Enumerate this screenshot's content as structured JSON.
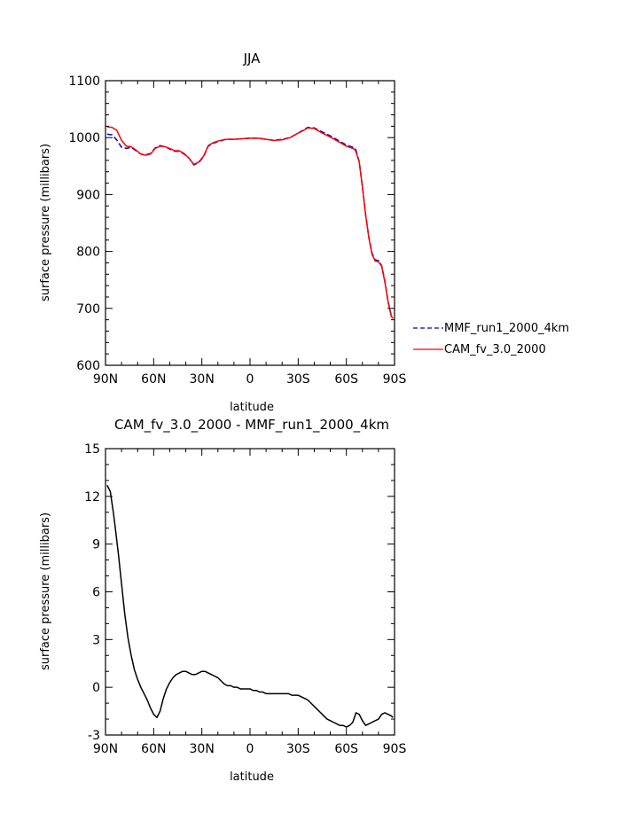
{
  "chart_data": [
    {
      "type": "line",
      "title": "JJA",
      "xlabel": "latitude",
      "ylabel": "surface pressure (millibars)",
      "xlim": [
        90,
        -90
      ],
      "ylim": [
        600,
        1100
      ],
      "x_ticks": [
        90,
        60,
        30,
        0,
        -30,
        -60,
        -90
      ],
      "x_tick_labels": [
        "90N",
        "60N",
        "30N",
        "0",
        "30S",
        "60S",
        "90S"
      ],
      "y_ticks": [
        600,
        700,
        800,
        900,
        1000,
        1100
      ],
      "y_tick_labels": [
        "600",
        "700",
        "800",
        "900",
        "1000",
        "1100"
      ],
      "grid": false,
      "legend_position": "right, outside plot",
      "series": [
        {
          "name": "MMF_run1_2000_4km",
          "color": "#0000cc",
          "style": "dashed",
          "x": [
            89,
            86,
            83,
            80,
            77,
            74,
            71,
            68,
            65,
            62,
            59,
            56,
            53,
            50,
            47,
            44,
            41,
            38,
            35,
            32,
            29,
            26,
            23,
            20,
            15,
            10,
            5,
            0,
            -5,
            -10,
            -15,
            -20,
            -25,
            -30,
            -33,
            -36,
            -40,
            -45,
            -50,
            -55,
            -60,
            -63,
            -65,
            -66,
            -68,
            -70,
            -72,
            -74,
            -76,
            -78,
            -80,
            -82,
            -84,
            -86,
            -88,
            -89
          ],
          "y": [
            1006,
            1005,
            996,
            983,
            981,
            983,
            977,
            971,
            970,
            972,
            982,
            986,
            984,
            980,
            976,
            976,
            971,
            964,
            952,
            956,
            966,
            985,
            990,
            993,
            997,
            997,
            998,
            999,
            999,
            997,
            995,
            997,
            1000,
            1008,
            1013,
            1018,
            1017,
            1010,
            1003,
            995,
            987,
            984,
            982,
            978,
            958,
            915,
            865,
            825,
            797,
            785,
            784,
            775,
            748,
            712,
            687,
            684
          ]
        },
        {
          "name": "CAM_fv_3.0_2000",
          "color": "#ff0000",
          "style": "solid",
          "x": [
            89,
            86,
            83,
            80,
            77,
            74,
            71,
            68,
            65,
            62,
            59,
            56,
            53,
            50,
            47,
            44,
            41,
            38,
            35,
            32,
            29,
            26,
            23,
            20,
            15,
            10,
            5,
            0,
            -5,
            -10,
            -15,
            -20,
            -25,
            -30,
            -33,
            -36,
            -40,
            -45,
            -50,
            -55,
            -60,
            -63,
            -65,
            -66,
            -68,
            -70,
            -72,
            -74,
            -76,
            -78,
            -80,
            -82,
            -84,
            -86,
            -88,
            -89
          ],
          "y": [
            1019,
            1018,
            1013,
            995,
            985,
            984,
            978,
            971,
            969,
            971,
            981,
            985,
            984,
            981,
            977,
            977,
            972,
            964,
            953,
            957,
            967,
            986,
            991,
            994,
            997,
            997,
            998,
            999,
            999,
            997,
            995,
            996,
            1000,
            1008,
            1012,
            1017,
            1016,
            1008,
            1001,
            993,
            985,
            982,
            980,
            975,
            957,
            913,
            864,
            824,
            795,
            783,
            782,
            774,
            746,
            711,
            686,
            682
          ]
        }
      ]
    },
    {
      "type": "line",
      "title": "CAM_fv_3.0_2000 - MMF_run1_2000_4km",
      "xlabel": "latitude",
      "ylabel": "surface pressure (millibars)",
      "xlim": [
        90,
        -90
      ],
      "ylim": [
        -3,
        15
      ],
      "x_ticks": [
        90,
        60,
        30,
        0,
        -30,
        -60,
        -90
      ],
      "x_tick_labels": [
        "90N",
        "60N",
        "30N",
        "0",
        "30S",
        "60S",
        "90S"
      ],
      "y_ticks": [
        -3,
        0,
        3,
        6,
        9,
        12,
        15
      ],
      "y_tick_labels": [
        "-3",
        "0",
        "3",
        "6",
        "9",
        "12",
        "15"
      ],
      "grid": false,
      "series": [
        {
          "color": "#000000",
          "style": "solid",
          "x": [
            89,
            88,
            87,
            86,
            85,
            84,
            82,
            80,
            78,
            76,
            74,
            72,
            70,
            68,
            66,
            64,
            62,
            60,
            58,
            56,
            54,
            52,
            50,
            48,
            46,
            44,
            42,
            40,
            38,
            36,
            34,
            32,
            30,
            28,
            26,
            24,
            22,
            20,
            18,
            16,
            14,
            12,
            10,
            8,
            6,
            4,
            2,
            0,
            -2,
            -4,
            -6,
            -8,
            -10,
            -12,
            -14,
            -16,
            -18,
            -20,
            -22,
            -24,
            -26,
            -28,
            -30,
            -32,
            -34,
            -36,
            -38,
            -40,
            -42,
            -44,
            -46,
            -48,
            -50,
            -52,
            -54,
            -56,
            -58,
            -60,
            -62,
            -64,
            -66,
            -68,
            -70,
            -72,
            -74,
            -76,
            -78,
            -80,
            -82,
            -84,
            -86,
            -88,
            -89
          ],
          "y": [
            12.7,
            12.5,
            12.3,
            11.6,
            10.9,
            10.1,
            8.4,
            6.5,
            4.6,
            3.1,
            2.0,
            1.1,
            0.5,
            0.0,
            -0.4,
            -0.8,
            -1.3,
            -1.7,
            -1.9,
            -1.5,
            -0.7,
            -0.1,
            0.3,
            0.6,
            0.8,
            0.9,
            1.0,
            1.0,
            0.9,
            0.8,
            0.8,
            0.9,
            1.0,
            1.0,
            0.9,
            0.8,
            0.7,
            0.6,
            0.4,
            0.2,
            0.1,
            0.1,
            0.0,
            0.0,
            -0.1,
            -0.1,
            -0.1,
            -0.1,
            -0.2,
            -0.2,
            -0.3,
            -0.3,
            -0.4,
            -0.4,
            -0.4,
            -0.4,
            -0.4,
            -0.4,
            -0.4,
            -0.4,
            -0.5,
            -0.5,
            -0.5,
            -0.6,
            -0.7,
            -0.8,
            -1.0,
            -1.2,
            -1.4,
            -1.6,
            -1.8,
            -2.0,
            -2.1,
            -2.2,
            -2.3,
            -2.4,
            -2.4,
            -2.5,
            -2.4,
            -2.2,
            -1.6,
            -1.7,
            -2.1,
            -2.4,
            -2.3,
            -2.2,
            -2.1,
            -2.0,
            -1.7,
            -1.6,
            -1.7,
            -1.8,
            -1.9
          ]
        }
      ]
    }
  ]
}
